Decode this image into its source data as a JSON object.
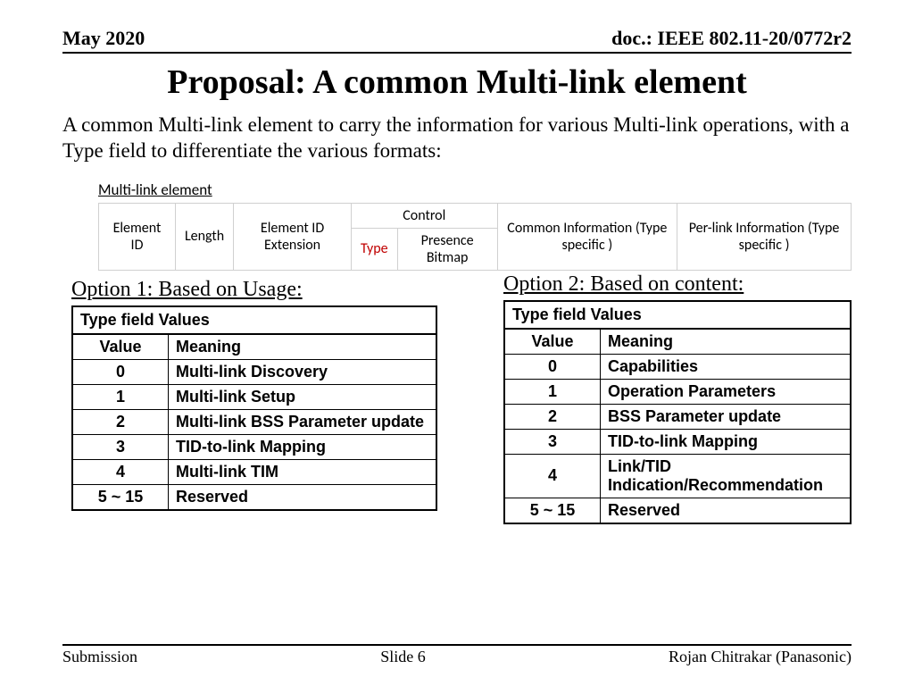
{
  "header": {
    "date": "May 2020",
    "doc": "doc.: IEEE 802.11-20/0772r2"
  },
  "title": "Proposal: A common Multi-link element",
  "lead": "A common Multi-link element to carry the information for various Multi-link operations, with a Type field to differentiate the various formats:",
  "structure": {
    "label": "Multi-link element",
    "fields": {
      "element_id": "Element ID",
      "length": "Length",
      "ext": "Element ID Extension",
      "control": "Control",
      "type": "Type",
      "presence": "Presence Bitmap",
      "common": "Common Information (Type specific )",
      "perlink": "Per-link Information (Type specific )"
    },
    "border_color": "#d0d0d0",
    "type_color": "#c00000"
  },
  "option1": {
    "title": "Option 1: Based on Usage:",
    "caption": "Type field Values",
    "col_value": "Value",
    "col_meaning": "Meaning",
    "rows": [
      {
        "v": "0",
        "m": "Multi-link Discovery"
      },
      {
        "v": "1",
        "m": "Multi-link Setup"
      },
      {
        "v": "2",
        "m": "Multi-link BSS Parameter update"
      },
      {
        "v": "3",
        "m": "TID-to-link Mapping"
      },
      {
        "v": "4",
        "m": "Multi-link TIM"
      },
      {
        "v": "5 ~ 15",
        "m": "Reserved"
      }
    ]
  },
  "option2": {
    "title": "Option 2: Based on content:",
    "caption": "Type field Values",
    "col_value": "Value",
    "col_meaning": "Meaning",
    "rows": [
      {
        "v": "0",
        "m": "Capabilities"
      },
      {
        "v": "1",
        "m": "Operation Parameters"
      },
      {
        "v": "2",
        "m": "BSS Parameter update"
      },
      {
        "v": "3",
        "m": "TID-to-link Mapping"
      },
      {
        "v": "4",
        "m": "Link/TID Indication/Recommendation"
      },
      {
        "v": "5 ~ 15",
        "m": "Reserved"
      }
    ]
  },
  "footer": {
    "left": "Submission",
    "center": "Slide 6",
    "right": "Rojan Chitrakar (Panasonic)"
  },
  "style": {
    "page_bg": "#ffffff",
    "text_color": "#000000",
    "rule_color": "#000000",
    "body_font": "Times New Roman",
    "table_font": "Arial Narrow",
    "struct_font": "Calibri",
    "title_fontsize_pt": 28,
    "lead_fontsize_pt": 17,
    "opt_title_fontsize_pt": 18,
    "table_fontsize_pt": 13
  }
}
